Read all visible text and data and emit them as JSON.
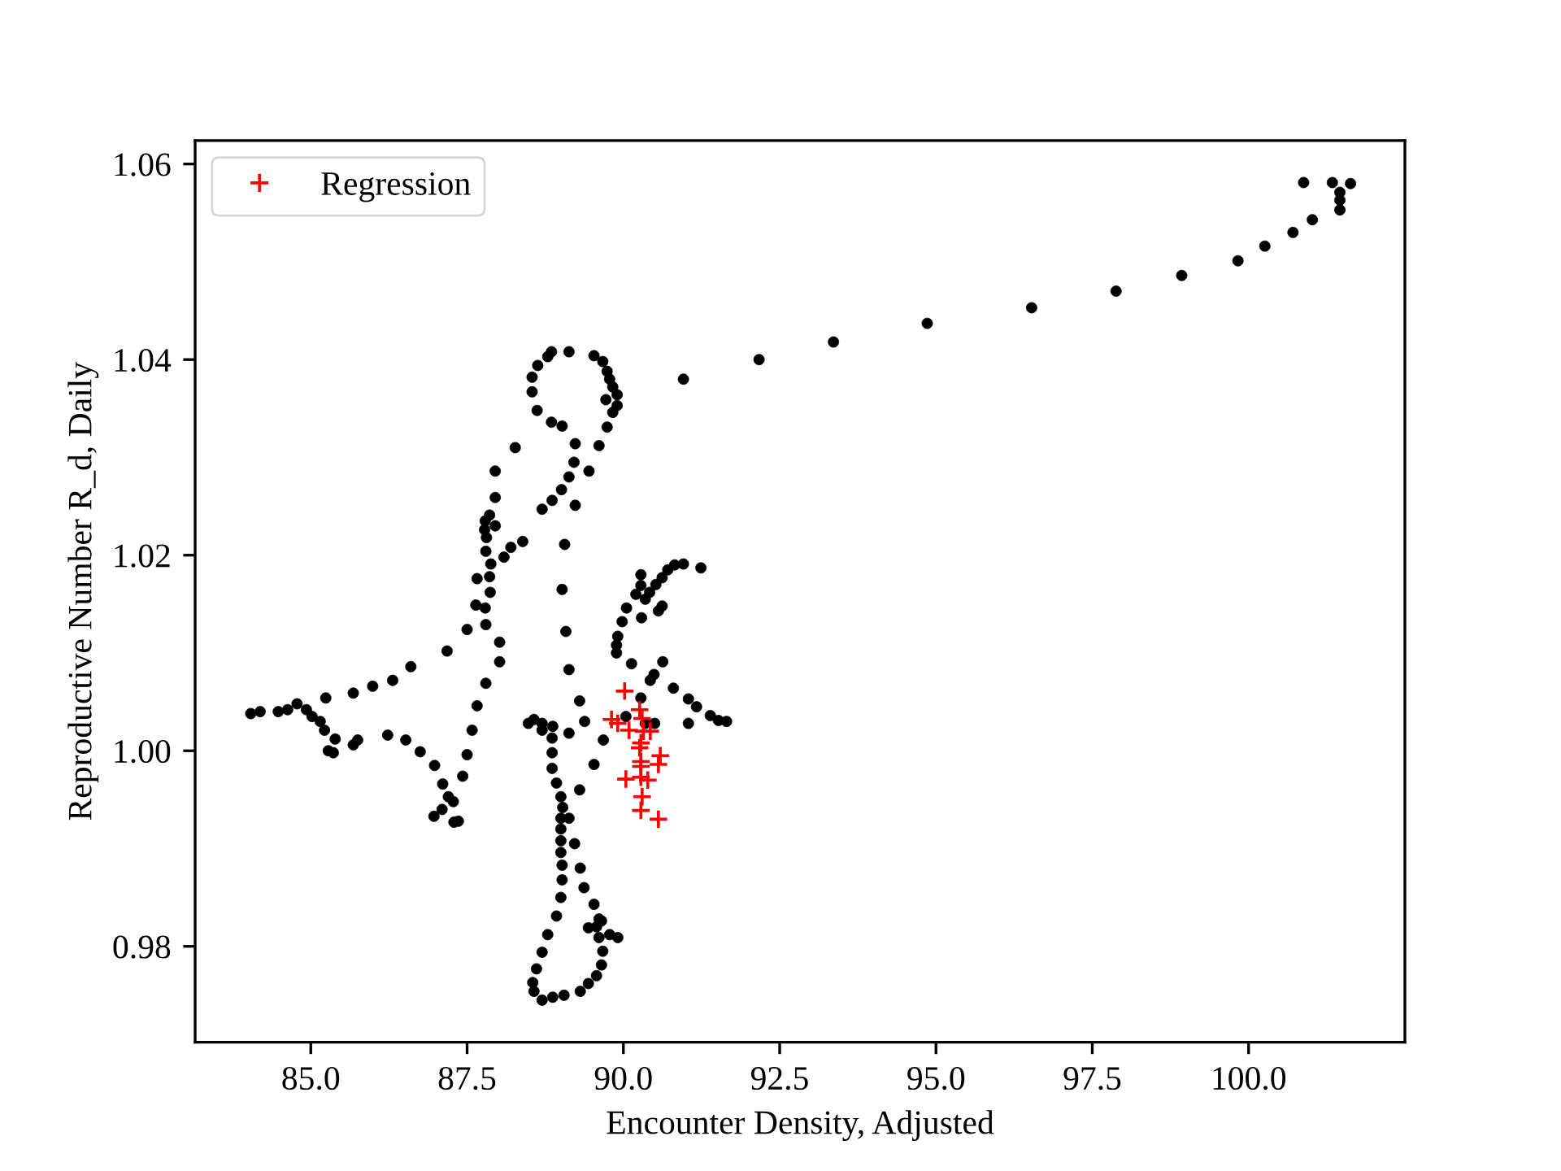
{
  "chart_data": {
    "type": "scatter",
    "xlabel": "Encounter Density, Adjusted",
    "ylabel": "Reproductive Number R_d, Daily",
    "xlim": [
      83.15,
      102.5
    ],
    "ylim": [
      0.9702,
      1.0624
    ],
    "xticks": [
      {
        "value": 85,
        "label": "85.0"
      },
      {
        "value": 87.5,
        "label": "87.5"
      },
      {
        "value": 90,
        "label": "90.0"
      },
      {
        "value": 92.5,
        "label": "92.5"
      },
      {
        "value": 95,
        "label": "95.0"
      },
      {
        "value": 97.5,
        "label": "97.5"
      },
      {
        "value": 100,
        "label": "100.0"
      }
    ],
    "yticks": [
      {
        "value": 0.98,
        "label": "0.98"
      },
      {
        "value": 1.0,
        "label": "1.00"
      },
      {
        "value": 1.02,
        "label": "1.02"
      },
      {
        "value": 1.04,
        "label": "1.04"
      },
      {
        "value": 1.06,
        "label": "1.06"
      }
    ],
    "legend": "top left",
    "series": [
      {
        "color": "#000000",
        "marker": "circle",
        "x": [
          90.96,
          92.17,
          93.36,
          94.86,
          96.53,
          97.88,
          98.93,
          99.83,
          100.26,
          100.71,
          101.02,
          100.88,
          101.34,
          101.63,
          101.46,
          101.46,
          101.46,
          84.04,
          84.19,
          84.48,
          84.63,
          84.78,
          84.93,
          85.02,
          85.15,
          85.22,
          85.39,
          85.28,
          85.36,
          85.24,
          85.68,
          85.99,
          86.31,
          86.6,
          87.18,
          85.68,
          85.75,
          86.23,
          86.52,
          86.75,
          86.98,
          87.11,
          87.2,
          87.28,
          87.1,
          86.97,
          87.29,
          87.36,
          87.43,
          87.5,
          87.58,
          87.66,
          87.8,
          88.02,
          88.02,
          87.8,
          87.5,
          87.79,
          87.64,
          87.87,
          88.48,
          88.57,
          88.85,
          88.79,
          88.63,
          89.13,
          89.53,
          89.67,
          89.74,
          89.78,
          89.83,
          89.9,
          89.9,
          89.83,
          89.72,
          89.74,
          89.61,
          89.45,
          88.54,
          88.54,
          88.62,
          88.85,
          89.02,
          89.23,
          89.21,
          89.13,
          89.01,
          88.86,
          88.7,
          89.23,
          88.27,
          87.95,
          87.95,
          87.86,
          87.79,
          87.78,
          87.95,
          87.81,
          87.8,
          88.39,
          88.2,
          88.09,
          87.88,
          87.86,
          87.66,
          89.06,
          89.02,
          89.08,
          89.13,
          91.24,
          90.96,
          90.82,
          90.71,
          90.62,
          90.52,
          90.42,
          90.28,
          90.28,
          90.2,
          90.35,
          90.62,
          90.56,
          90.29,
          90.05,
          89.98,
          89.91,
          89.89,
          89.89,
          90.13,
          90.63,
          90.49,
          90.43,
          90.8,
          91.04,
          91.17,
          91.39,
          91.52,
          91.65,
          91.04,
          89.3,
          89.38,
          89.68,
          89.53,
          89.3,
          90.28,
          90.04,
          90.35,
          90.5,
          88.7,
          88.87,
          89.13,
          88.86,
          88.7,
          88.86,
          88.86,
          88.93,
          89.0,
          89.03,
          89.0,
          89.0,
          89.0,
          89.0,
          89.02,
          89.02,
          89.0,
          88.93,
          88.79,
          88.7,
          88.61,
          88.55,
          88.57,
          88.7,
          88.87,
          89.05,
          89.31,
          89.44,
          89.57,
          89.65,
          89.67,
          89.61,
          89.57,
          89.44,
          89.78,
          89.91,
          89.65,
          89.13,
          89.22,
          89.31,
          89.37,
          89.53,
          89.61
        ],
        "values": [
          1.038,
          1.04,
          1.0418,
          1.0437,
          1.0453,
          1.047,
          1.0486,
          1.0501,
          1.0516,
          1.053,
          1.0543,
          1.0581,
          1.0581,
          1.058,
          1.0571,
          1.0563,
          1.0553,
          1.0038,
          1.004,
          1.004,
          1.0042,
          1.0048,
          1.0042,
          1.0035,
          1.003,
          1.0021,
          1.0012,
          1.0,
          0.9998,
          1.0054,
          1.0059,
          1.0066,
          1.0072,
          1.0086,
          1.0102,
          1.0006,
          1.0011,
          1.0016,
          1.0011,
          0.9999,
          0.9985,
          0.9966,
          0.9953,
          0.9948,
          0.994,
          0.9933,
          0.9927,
          0.9928,
          0.9974,
          0.9996,
          1.0021,
          1.0046,
          1.0069,
          1.0091,
          1.0111,
          1.0129,
          1.0124,
          1.0146,
          1.0149,
          1.0162,
          1.0028,
          1.0032,
          1.0408,
          1.0403,
          1.0394,
          1.0408,
          1.0404,
          1.0398,
          1.0388,
          1.038,
          1.0372,
          1.0364,
          1.0353,
          1.0346,
          1.0359,
          1.0331,
          1.0312,
          1.0286,
          1.0382,
          1.0367,
          1.0348,
          1.0336,
          1.0332,
          1.0314,
          1.0295,
          1.028,
          1.0267,
          1.0256,
          1.0247,
          1.0251,
          1.031,
          1.0286,
          1.0259,
          1.0241,
          1.0235,
          1.0226,
          1.023,
          1.0218,
          1.0204,
          1.0214,
          1.0208,
          1.0198,
          1.0191,
          1.0178,
          1.0176,
          1.0211,
          1.0165,
          1.0122,
          1.0083,
          1.0187,
          1.0191,
          1.019,
          1.0185,
          1.0177,
          1.017,
          1.0162,
          1.018,
          1.0169,
          1.016,
          1.0155,
          1.0148,
          1.0143,
          1.0136,
          1.0146,
          1.0132,
          1.0117,
          1.0108,
          1.01,
          1.0089,
          1.0091,
          1.0078,
          1.0072,
          1.0064,
          1.0053,
          1.0045,
          1.0036,
          1.0031,
          1.003,
          1.0028,
          1.0051,
          1.003,
          1.0011,
          0.9986,
          0.996,
          1.0054,
          1.0035,
          1.0028,
          1.0028,
          1.0028,
          1.0025,
          1.0018,
          1.0013,
          1.0021,
          0.9998,
          0.9982,
          0.9967,
          0.9953,
          0.9942,
          0.9931,
          0.992,
          0.9908,
          0.9896,
          0.9883,
          0.9868,
          0.985,
          0.9831,
          0.9812,
          0.9794,
          0.9777,
          0.9763,
          0.9754,
          0.9745,
          0.9748,
          0.975,
          0.9754,
          0.9762,
          0.977,
          0.9781,
          0.9795,
          0.9809,
          0.982,
          0.9819,
          0.9812,
          0.9809,
          0.9826,
          0.9931,
          0.9905,
          0.988,
          0.986,
          0.9843,
          0.9828
        ]
      },
      {
        "name": "Regression",
        "color": "#ff0000",
        "marker": "cross",
        "x": [
          90.02,
          89.81,
          89.91,
          90.26,
          90.3,
          90.43,
          90.28,
          90.26,
          90.59,
          90.56,
          90.28,
          90.28,
          90.04,
          90.28,
          90.39,
          90.3,
          90.28,
          90.56,
          90.09,
          90.32
        ],
        "values": [
          1.0061,
          1.0032,
          1.0028,
          1.0042,
          1.0033,
          1.002,
          1.0008,
          1.0003,
          0.9995,
          0.9986,
          0.9989,
          0.9984,
          0.9971,
          0.9973,
          0.997,
          0.9953,
          0.9939,
          0.993,
          1.0021,
          1.002
        ]
      }
    ]
  }
}
